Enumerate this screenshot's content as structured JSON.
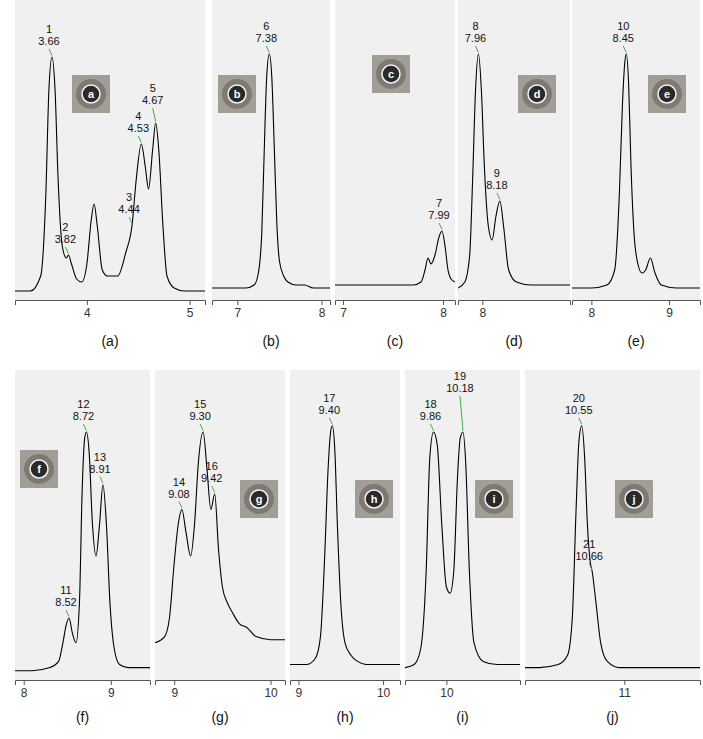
{
  "chart_data": [
    {
      "type": "line",
      "title": "(a)",
      "inset": "a",
      "x": [
        3.3,
        3.45,
        3.55,
        3.6,
        3.63,
        3.66,
        3.69,
        3.72,
        3.76,
        3.8,
        3.82,
        3.85,
        3.9,
        3.95,
        4.0,
        4.04,
        4.07,
        4.1,
        4.15,
        4.2,
        4.3,
        4.38,
        4.44,
        4.48,
        4.53,
        4.57,
        4.6,
        4.64,
        4.67,
        4.7,
        4.74,
        4.78,
        4.85,
        4.95,
        5.05,
        5.15
      ],
      "series": [
        {
          "color": "#000000",
          "values": [
            3,
            3,
            8,
            35,
            70,
            81,
            70,
            40,
            18,
            14,
            15,
            12,
            7,
            6,
            12,
            26,
            32,
            25,
            10,
            8,
            8,
            16,
            25,
            40,
            52,
            44,
            37,
            50,
            59,
            50,
            25,
            8,
            4,
            3,
            3,
            3
          ]
        }
      ],
      "xlim": [
        3.3,
        5.15
      ],
      "xticks": [
        4,
        5
      ],
      "ylim": [
        0,
        100
      ],
      "tick_labels": "x",
      "peaks": [
        {
          "id": "1",
          "rt": "3.66",
          "x": 3.66,
          "y": 81
        },
        {
          "id": "2",
          "rt": "3.82",
          "x": 3.82,
          "y": 15
        },
        {
          "id": "3",
          "rt": "4.44",
          "x": 4.44,
          "y": 25
        },
        {
          "id": "4",
          "rt": "4.53",
          "x": 4.53,
          "y": 52
        },
        {
          "id": "5",
          "rt": "4.67",
          "x": 4.67,
          "y": 59
        }
      ]
    },
    {
      "type": "line",
      "title": "(b)",
      "inset": "b",
      "x": [
        6.7,
        6.9,
        7,
        7.1,
        7.2,
        7.25,
        7.29,
        7.32,
        7.35,
        7.38,
        7.41,
        7.44,
        7.47,
        7.5,
        7.55,
        7.6,
        7.7,
        7.8,
        7.9,
        8,
        8.1
      ],
      "series": [
        {
          "color": "#000000",
          "values": [
            4,
            4,
            4,
            4,
            5,
            9,
            22,
            50,
            75,
            82,
            74,
            50,
            25,
            13,
            8,
            6,
            5,
            5,
            4,
            4,
            4
          ]
        }
      ],
      "xlim": [
        6.7,
        8.1
      ],
      "xticks": [
        7,
        8
      ],
      "ylim": [
        0,
        100
      ],
      "tick_labels": "x",
      "peaks": [
        {
          "id": "6",
          "rt": "7.38",
          "x": 7.38,
          "y": 82
        }
      ]
    },
    {
      "type": "line",
      "title": "(c)",
      "inset": "c",
      "x": [
        6.92,
        7.1,
        7.3,
        7.5,
        7.7,
        7.78,
        7.82,
        7.85,
        7.88,
        7.92,
        7.96,
        7.99,
        8.02,
        8.05,
        8.08,
        8.12
      ],
      "series": [
        {
          "color": "#000000",
          "values": [
            5,
            5,
            5,
            5,
            5,
            6,
            10,
            14,
            12,
            15,
            21,
            23,
            18,
            10,
            7,
            6
          ]
        }
      ],
      "xlim": [
        6.92,
        8.12
      ],
      "xticks": [
        7,
        8
      ],
      "ylim": [
        0,
        100
      ],
      "tick_labels": "x",
      "peaks": [
        {
          "id": "7",
          "rt": "7.99",
          "x": 7.99,
          "y": 23
        }
      ]
    },
    {
      "type": "line",
      "title": "(d)",
      "inset": "d",
      "x": [
        7.75,
        7.82,
        7.87,
        7.9,
        7.93,
        7.96,
        7.99,
        8.02,
        8.06,
        8.1,
        8.14,
        8.18,
        8.22,
        8.27,
        8.35,
        8.5,
        8.7,
        8.9
      ],
      "series": [
        {
          "color": "#000000",
          "values": [
            4,
            6,
            15,
            40,
            70,
            82,
            70,
            45,
            25,
            20,
            28,
            33,
            24,
            10,
            6,
            5,
            5,
            5
          ]
        }
      ],
      "xlim": [
        7.75,
        8.9
      ],
      "xticks": [
        8
      ],
      "ylim": [
        0,
        100
      ],
      "tick_labels": "x",
      "peaks": [
        {
          "id": "8",
          "rt": "7.96",
          "x": 7.96,
          "y": 82
        },
        {
          "id": "9",
          "rt": "8.18",
          "x": 8.18,
          "y": 33
        }
      ]
    },
    {
      "type": "line",
      "title": "(e)",
      "inset": "e",
      "x": [
        7.75,
        8,
        8.2,
        8.3,
        8.36,
        8.4,
        8.43,
        8.45,
        8.48,
        8.51,
        8.55,
        8.6,
        8.65,
        8.7,
        8.76,
        8.82,
        8.9,
        9.1,
        9.4
      ],
      "series": [
        {
          "color": "#000000",
          "values": [
            4,
            4,
            5,
            10,
            35,
            65,
            79,
            82,
            72,
            45,
            22,
            12,
            9,
            10,
            14,
            9,
            5,
            4,
            4
          ]
        }
      ],
      "xlim": [
        7.75,
        9.4
      ],
      "xticks": [
        8,
        9
      ],
      "ylim": [
        0,
        100
      ],
      "tick_labels": "x",
      "peaks": [
        {
          "id": "10",
          "rt": "8.45",
          "x": 8.45,
          "y": 82
        }
      ]
    },
    {
      "type": "line",
      "title": "(f)",
      "inset": "f",
      "x": [
        7.9,
        8.1,
        8.3,
        8.4,
        8.45,
        8.49,
        8.52,
        8.56,
        8.6,
        8.64,
        8.67,
        8.7,
        8.72,
        8.75,
        8.79,
        8.83,
        8.87,
        8.91,
        8.95,
        8.99,
        9.04,
        9.1,
        9.2,
        9.3,
        9.45
      ],
      "series": [
        {
          "color": "#000000",
          "values": [
            3,
            3,
            4,
            6,
            12,
            18,
            20,
            15,
            12,
            25,
            60,
            78,
            80,
            74,
            50,
            40,
            50,
            63,
            50,
            25,
            10,
            5,
            4,
            4,
            4
          ]
        }
      ],
      "xlim": [
        7.9,
        9.45
      ],
      "xticks": [
        8,
        9
      ],
      "ylim": [
        0,
        100
      ],
      "tick_labels": "x",
      "peaks": [
        {
          "id": "11",
          "rt": "8.52",
          "x": 8.52,
          "y": 20
        },
        {
          "id": "12",
          "rt": "8.72",
          "x": 8.72,
          "y": 80
        },
        {
          "id": "13",
          "rt": "8.91",
          "x": 8.91,
          "y": 63
        }
      ]
    },
    {
      "type": "line",
      "title": "(g)",
      "inset": "g",
      "x": [
        8.8,
        8.9,
        8.95,
        9,
        9.04,
        9.08,
        9.12,
        9.17,
        9.21,
        9.25,
        9.3,
        9.34,
        9.38,
        9.42,
        9.46,
        9.5,
        9.55,
        9.6,
        9.68,
        9.75,
        9.85,
        10,
        10.15
      ],
      "series": [
        {
          "color": "#000000",
          "values": [
            12,
            14,
            20,
            38,
            50,
            55,
            48,
            40,
            50,
            70,
            80,
            68,
            55,
            60,
            42,
            30,
            25,
            22,
            18,
            17,
            14,
            13,
            13
          ]
        }
      ],
      "xlim": [
        8.8,
        10.15
      ],
      "xticks": [
        9,
        10
      ],
      "ylim": [
        0,
        100
      ],
      "tick_labels": "x",
      "peaks": [
        {
          "id": "14",
          "rt": "9.08",
          "x": 9.08,
          "y": 55
        },
        {
          "id": "15",
          "rt": "9.30",
          "x": 9.3,
          "y": 80
        },
        {
          "id": "16",
          "rt": "9.42",
          "x": 9.42,
          "y": 60
        }
      ]
    },
    {
      "type": "line",
      "title": "(h)",
      "inset": "h",
      "x": [
        8.9,
        9.1,
        9.2,
        9.26,
        9.31,
        9.35,
        9.38,
        9.4,
        9.43,
        9.46,
        9.5,
        9.55,
        9.62,
        9.7,
        9.8,
        10,
        10.2
      ],
      "series": [
        {
          "color": "#000000",
          "values": [
            5,
            5,
            7,
            14,
            40,
            68,
            80,
            82,
            74,
            50,
            25,
            12,
            8,
            6,
            5,
            5,
            5
          ]
        }
      ],
      "xlim": [
        8.9,
        10.2
      ],
      "xticks": [
        9,
        10
      ],
      "ylim": [
        0,
        100
      ],
      "tick_labels": "x",
      "peaks": [
        {
          "id": "17",
          "rt": "9.40",
          "x": 9.4,
          "y": 82
        }
      ]
    },
    {
      "type": "line",
      "title": "(i)",
      "inset": "i",
      "x": [
        9.55,
        9.65,
        9.72,
        9.78,
        9.82,
        9.86,
        9.9,
        9.95,
        10,
        10.04,
        10.08,
        10.12,
        10.15,
        10.18,
        10.21,
        10.25,
        10.3,
        10.4,
        10.55,
        10.8
      ],
      "series": [
        {
          "color": "#000000",
          "values": [
            4,
            5,
            10,
            35,
            72,
            80,
            76,
            50,
            30,
            28,
            35,
            65,
            78,
            80,
            70,
            35,
            12,
            6,
            5,
            5
          ]
        }
      ],
      "xlim": [
        9.55,
        10.8
      ],
      "xticks": [
        10
      ],
      "ylim": [
        0,
        100
      ],
      "tick_labels": "x",
      "peaks": [
        {
          "id": "18",
          "rt": "9.86",
          "x": 9.86,
          "y": 80
        },
        {
          "id": "19",
          "rt": "10.18",
          "x": 10.18,
          "y": 80
        }
      ]
    },
    {
      "type": "line",
      "title": "(j)",
      "inset": "j",
      "x": [
        9.95,
        10.1,
        10.3,
        10.4,
        10.45,
        10.49,
        10.52,
        10.55,
        10.58,
        10.61,
        10.64,
        10.66,
        10.7,
        10.75,
        10.82,
        10.95,
        11.2,
        11.5,
        11.8
      ],
      "series": [
        {
          "color": "#000000",
          "values": [
            4,
            4,
            5,
            8,
            20,
            55,
            77,
            82,
            72,
            50,
            38,
            35,
            25,
            12,
            6,
            4,
            4,
            4,
            4
          ]
        }
      ],
      "xlim": [
        9.95,
        11.8
      ],
      "xticks": [
        11
      ],
      "ylim": [
        0,
        100
      ],
      "tick_labels": "x",
      "peaks": [
        {
          "id": "20",
          "rt": "10.55",
          "x": 10.55,
          "y": 82
        },
        {
          "id": "21",
          "rt": "10.66",
          "x": 10.66,
          "y": 35
        }
      ]
    }
  ]
}
